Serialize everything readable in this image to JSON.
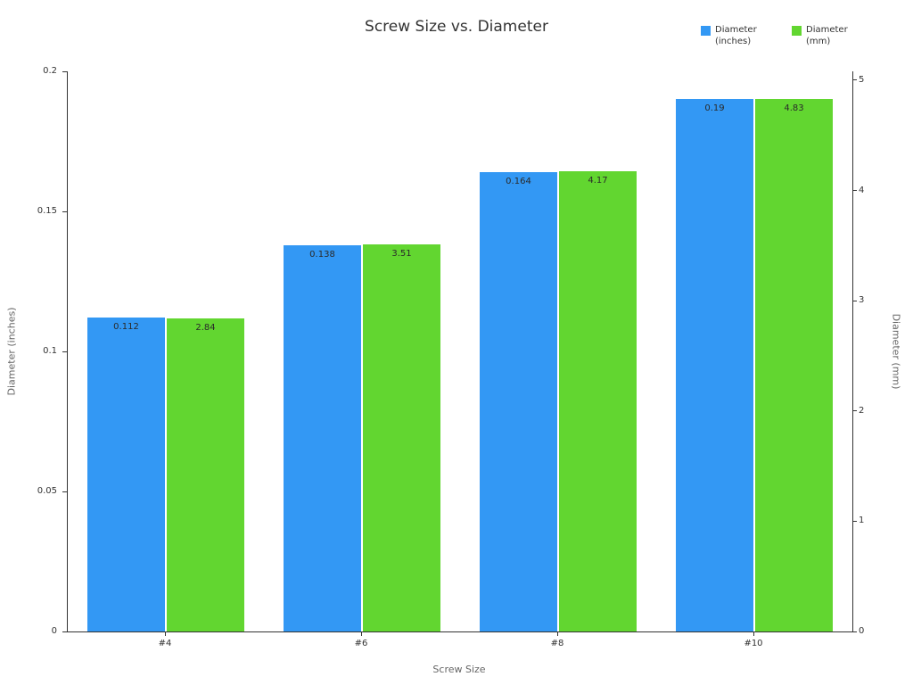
{
  "chart_data": {
    "type": "bar",
    "title": "Screw Size vs. Diameter",
    "xlabel": "Screw Size",
    "categories": [
      "#4",
      "#6",
      "#8",
      "#10"
    ],
    "series": [
      {
        "name": "Diameter (inches)",
        "axis": "left",
        "color": "#3398F4",
        "values": [
          0.112,
          0.138,
          0.164,
          0.19
        ]
      },
      {
        "name": "Diameter (mm)",
        "axis": "right",
        "color": "#62D630",
        "values": [
          2.84,
          3.51,
          4.17,
          4.83
        ]
      }
    ],
    "left_axis": {
      "label": "Diameter (inches)",
      "ticks": [
        0,
        0.05,
        0.1,
        0.15,
        0.2
      ],
      "range": [
        0,
        0.2
      ]
    },
    "right_axis": {
      "label": "Diameter (mm)",
      "ticks": [
        0,
        1,
        2,
        3,
        4,
        5
      ],
      "range": [
        0,
        5.08
      ]
    },
    "legend_position": "top-right",
    "grid": false
  }
}
